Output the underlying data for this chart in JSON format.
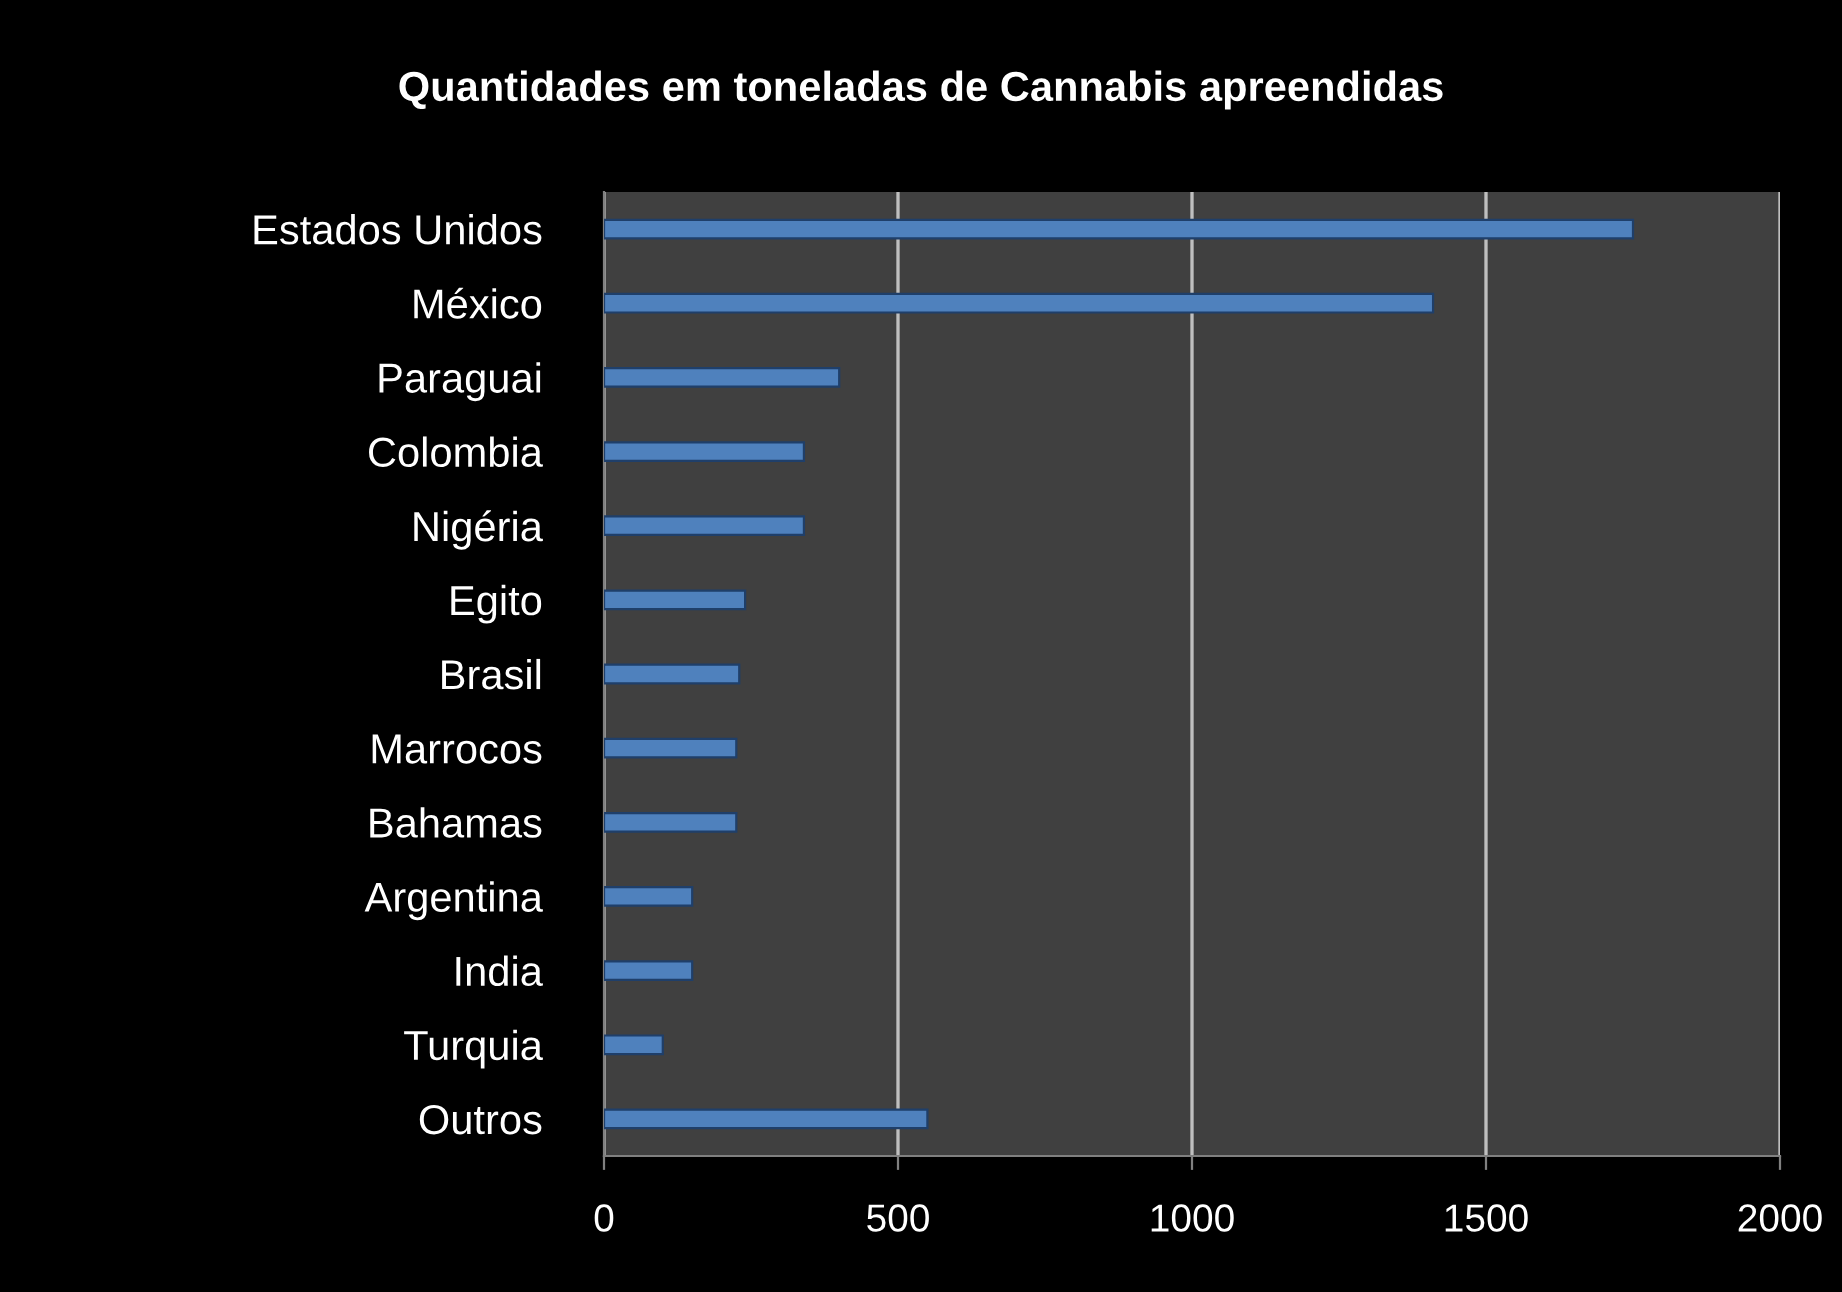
{
  "chart_data": {
    "type": "bar",
    "orientation": "horizontal",
    "title": "Quantidades em toneladas de Cannabis apreendidas",
    "categories": [
      "Estados Unidos",
      "México",
      "Paraguai",
      "Colombia",
      "Nigéria",
      "Egito",
      "Brasil",
      "Marrocos",
      "Bahamas",
      "Argentina",
      "India",
      "Turquia",
      "Outros"
    ],
    "values": [
      1750,
      1410,
      400,
      340,
      340,
      240,
      230,
      225,
      225,
      150,
      150,
      100,
      550
    ],
    "color": "#4f81bd",
    "xlim": [
      0,
      2000
    ],
    "xticks": [
      0,
      500,
      1000,
      1500,
      2000
    ],
    "grid": "x"
  }
}
